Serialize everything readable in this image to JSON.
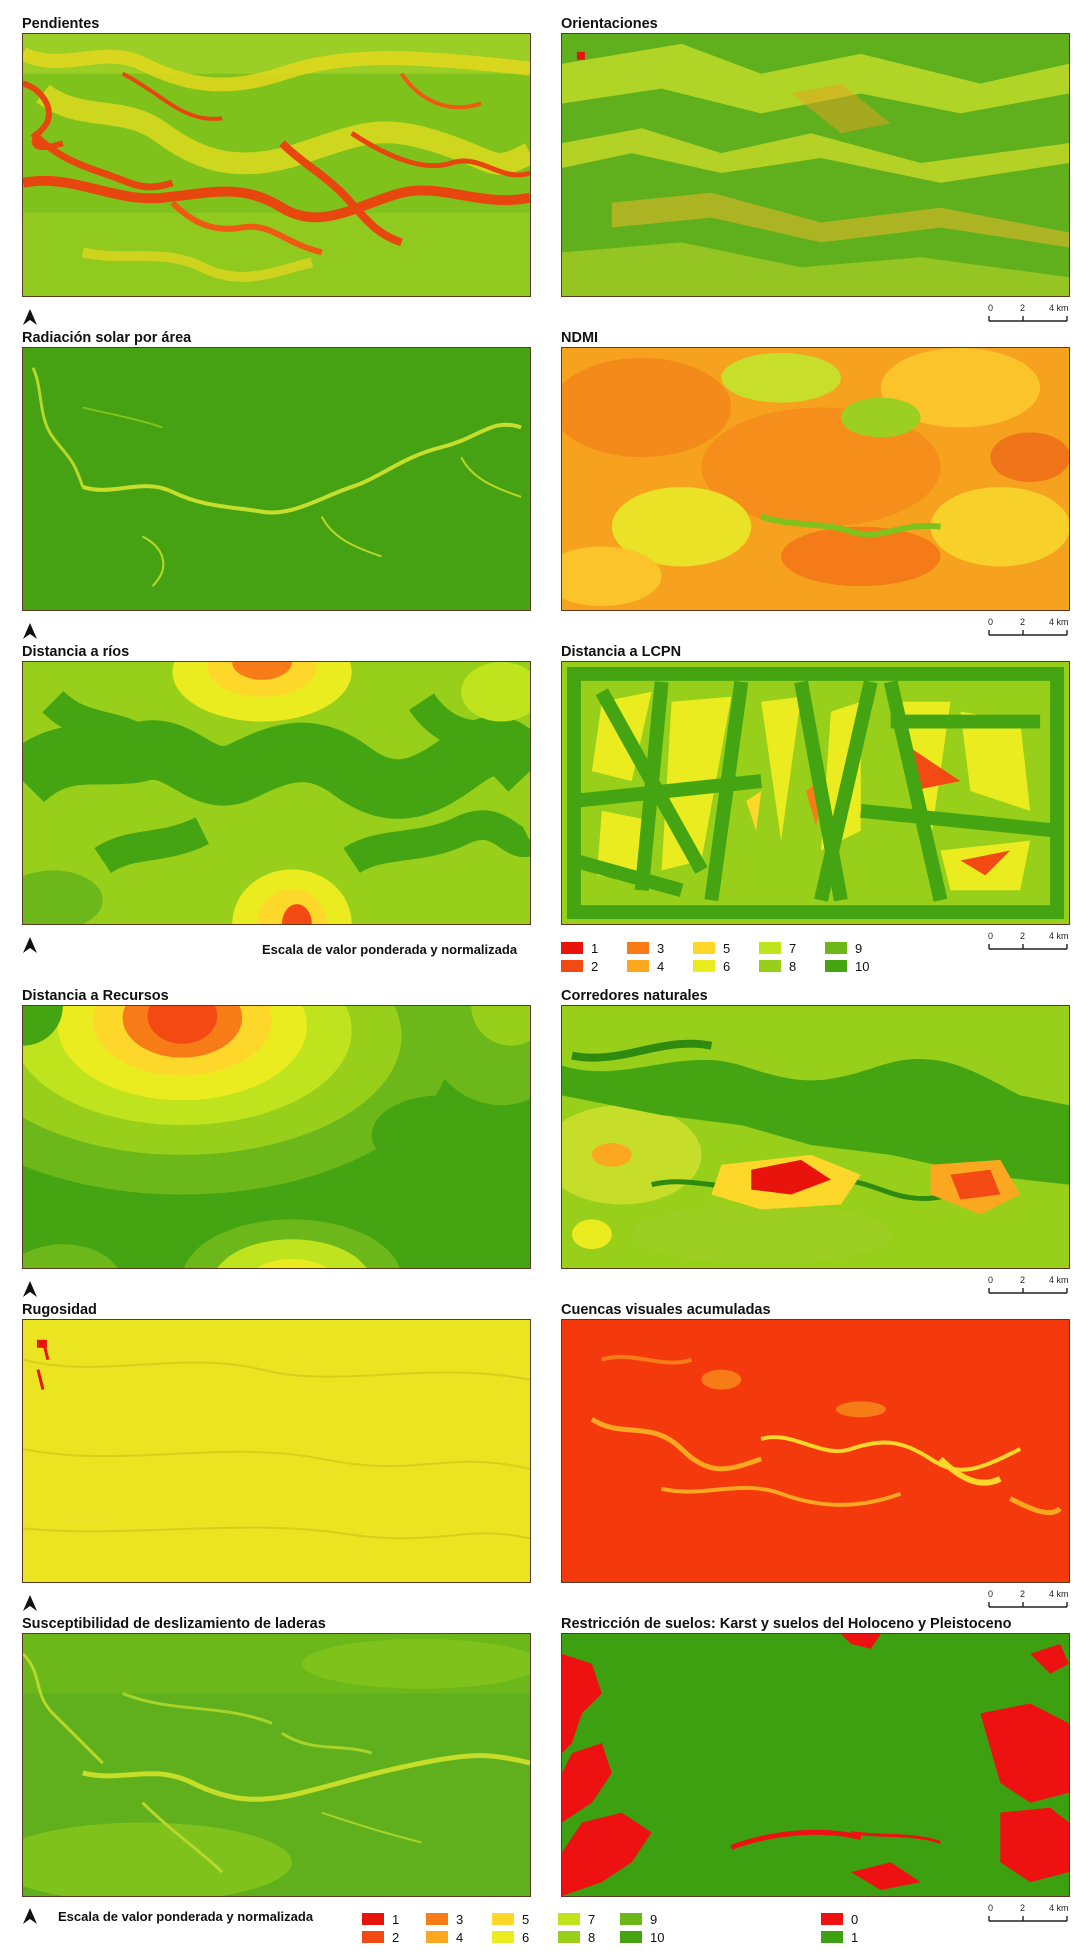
{
  "panels": [
    {
      "title": "Pendientes"
    },
    {
      "title": "Orientaciones"
    },
    {
      "title": "Radiación solar por área"
    },
    {
      "title": "NDMI"
    },
    {
      "title": "Distancia a ríos"
    },
    {
      "title": "Distancia a LCPN"
    },
    {
      "title": "Distancia a Recursos"
    },
    {
      "title": "Corredores naturales"
    },
    {
      "title": "Rugosidad"
    },
    {
      "title": "Cuencas visuales acumuladas"
    },
    {
      "title": "Susceptibilidad de deslizamiento de laderas"
    },
    {
      "title": "Restricción de suelos: Karst y suelos del Holoceno y Pleistoceno"
    }
  ],
  "scale": {
    "t0": "0",
    "t1": "2",
    "t2": "4 km"
  },
  "legend_title": "Escala de valor ponderada y normalizada",
  "legend_items": [
    {
      "label": "1",
      "color": "#e8140c"
    },
    {
      "label": "2",
      "color": "#f24a12"
    },
    {
      "label": "3",
      "color": "#f77c18"
    },
    {
      "label": "4",
      "color": "#fba71f"
    },
    {
      "label": "5",
      "color": "#fdd72a"
    },
    {
      "label": "6",
      "color": "#eaec20"
    },
    {
      "label": "7",
      "color": "#bfe41e"
    },
    {
      "label": "8",
      "color": "#97cf1a"
    },
    {
      "label": "9",
      "color": "#6cb81a"
    },
    {
      "label": "10",
      "color": "#44a412"
    }
  ],
  "binary_legend": [
    {
      "label": "0",
      "color": "#ee1111"
    },
    {
      "label": "1",
      "color": "#3da010"
    }
  ]
}
